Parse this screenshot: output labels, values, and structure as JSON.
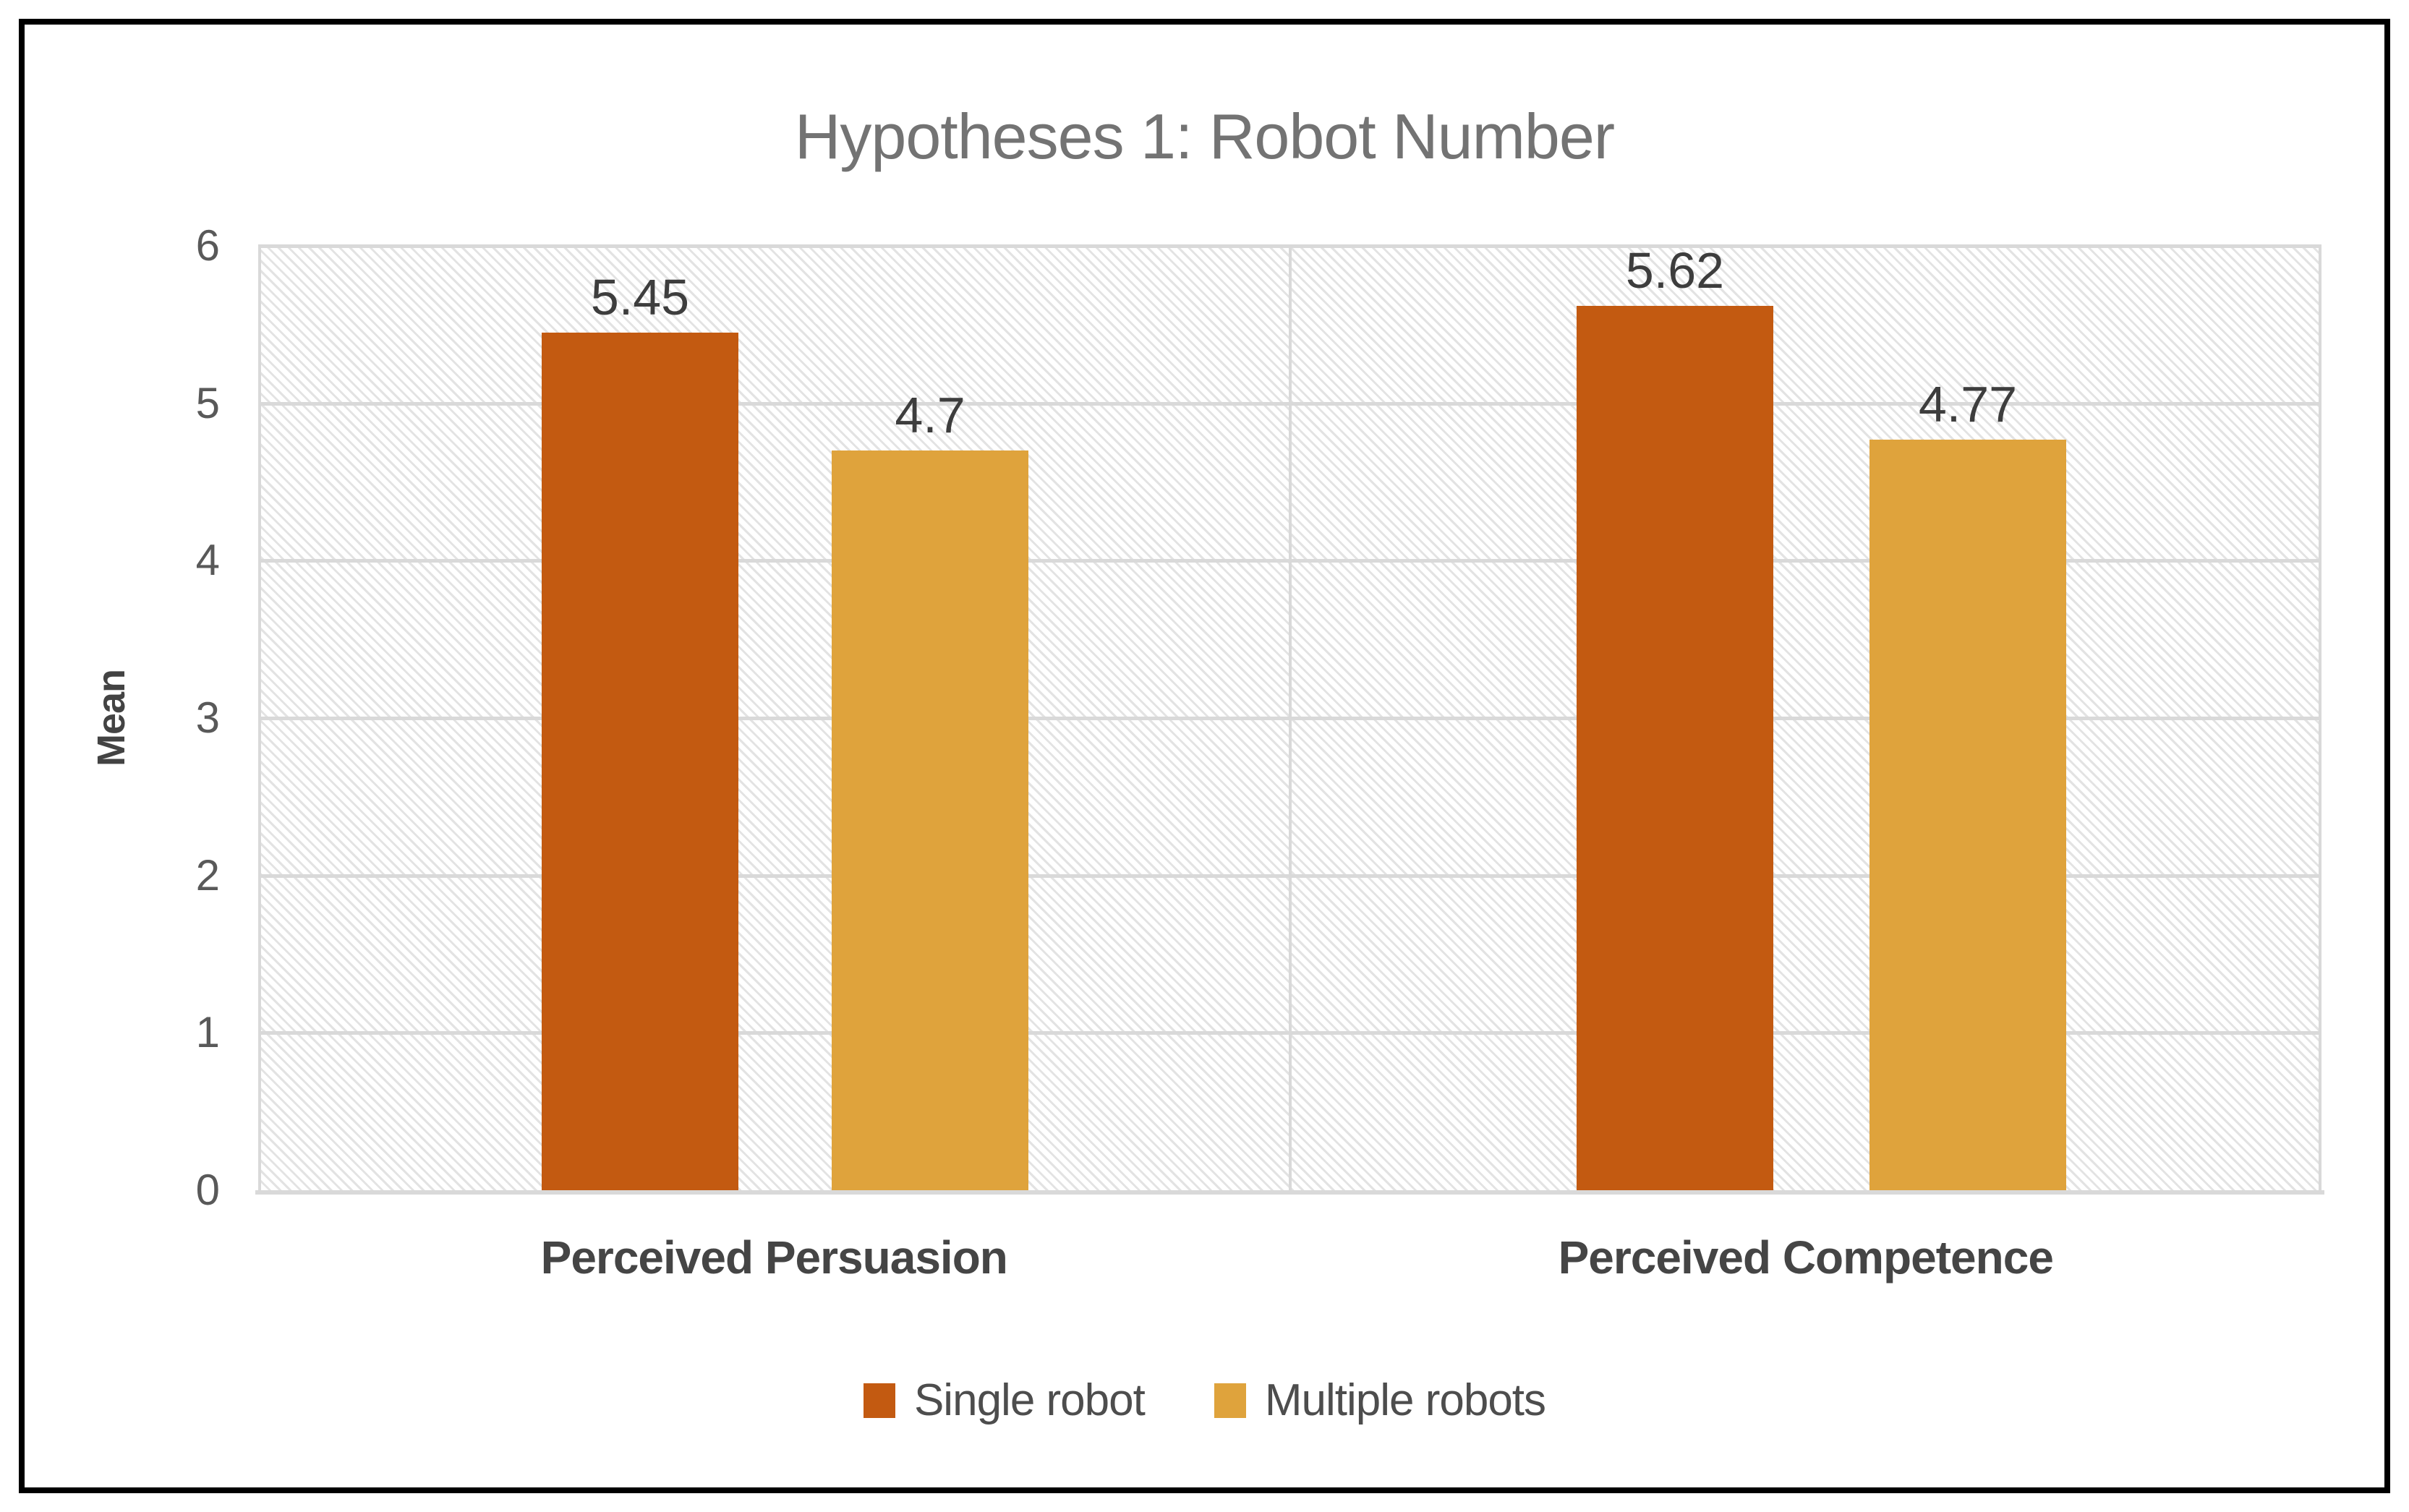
{
  "chart": {
    "title": {
      "text": "Hypotheses 1: Robot Number",
      "color": "#737373"
    },
    "y_axis": {
      "title": "Mean",
      "title_color": "#434343",
      "tick_color": "#595959",
      "ticks": [
        "6",
        "5",
        "4",
        "3",
        "2",
        "1",
        "0"
      ]
    },
    "x_axis": {
      "categories": [
        "Perceived Persuasion",
        "Perceived Competence"
      ],
      "label_color": "#454545"
    },
    "legend": {
      "text_color": "#4D4D4D",
      "items": [
        {
          "label": "Single robot",
          "color": "#C35A11"
        },
        {
          "label": "Multiple robots",
          "color": "#DFA33C"
        }
      ]
    },
    "grid": {
      "line_color": "#D9D9D9",
      "hatch_color": "#E3E3E3"
    },
    "bars": [
      {
        "series": "Single robot",
        "category": "Perceived Persuasion",
        "value": 5.45,
        "label": "5.45",
        "color": "#C35A11"
      },
      {
        "series": "Multiple robots",
        "category": "Perceived Persuasion",
        "value": 4.7,
        "label": "4.7",
        "color": "#DFA33C"
      },
      {
        "series": "Single robot",
        "category": "Perceived Competence",
        "value": 5.62,
        "label": "5.62",
        "color": "#C35A11"
      },
      {
        "series": "Multiple robots",
        "category": "Perceived Competence",
        "value": 4.77,
        "label": "4.77",
        "color": "#DFA33C"
      }
    ]
  },
  "chart_data": {
    "type": "bar",
    "title": "Hypotheses 1: Robot Number",
    "categories": [
      "Perceived Persuasion",
      "Perceived Competence"
    ],
    "series": [
      {
        "name": "Single robot",
        "color": "#C35A11",
        "values": [
          5.45,
          5.62
        ]
      },
      {
        "name": "Multiple robots",
        "color": "#DFA33C",
        "values": [
          4.7,
          4.77
        ]
      }
    ],
    "xlabel": "",
    "ylabel": "Mean",
    "ylim": [
      0,
      6
    ],
    "yticks": [
      0,
      1,
      2,
      3,
      4,
      5,
      6
    ],
    "grid": "horizontal-and-category-divider",
    "plot_background": "light-diagonal-hatch",
    "data_labels": true,
    "legend_position": "bottom"
  }
}
